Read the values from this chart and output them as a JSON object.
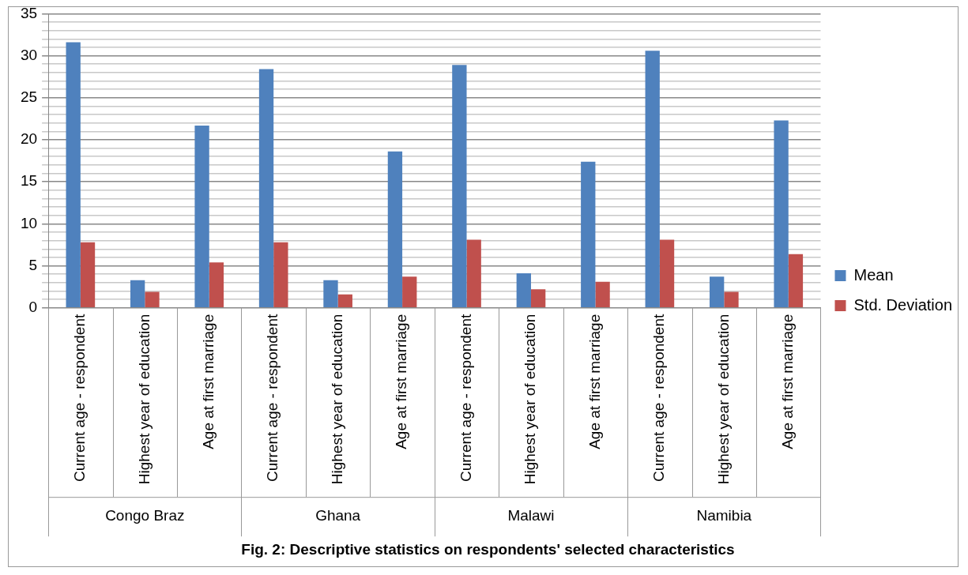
{
  "chart_data": {
    "type": "bar",
    "title": "Fig. 2: Descriptive statistics on respondents' selected characteristics",
    "categories": [
      "Current age - respondent",
      "Highest year of education",
      "Age at first marriage",
      "Current age - respondent",
      "Highest year of education",
      "Age at first marriage",
      "Current age - respondent",
      "Highest year of education",
      "Age at first marriage",
      "Current age - respondent",
      "Highest year of education",
      "Age at first marriage"
    ],
    "annotations": [
      "Congo Braz",
      "Ghana",
      "Malawi",
      "Namibia"
    ],
    "series": [
      {
        "name": "Mean",
        "color": "#4f81bd",
        "values": [
          31.6,
          3.3,
          21.7,
          28.4,
          3.3,
          18.6,
          28.9,
          4.1,
          17.4,
          30.6,
          3.7,
          22.3
        ]
      },
      {
        "name": "Std. Deviation",
        "color": "#c0504d",
        "values": [
          7.8,
          1.9,
          5.4,
          7.8,
          1.6,
          3.7,
          8.1,
          2.2,
          3.1,
          8.1,
          1.9,
          6.4
        ]
      }
    ],
    "ylim": [
      0,
      35
    ],
    "yticks": [
      0,
      {
        "value": 1,
        "label": null
      },
      {
        "value": 2,
        "label": null
      },
      {
        "value": 3,
        "label": null
      },
      {
        "value": 4,
        "label": null
      },
      5,
      {
        "value": 6,
        "label": null
      },
      {
        "value": 7,
        "label": null
      },
      {
        "value": 8,
        "label": null
      },
      {
        "value": 9,
        "label": null
      },
      10,
      {
        "value": 11,
        "label": null
      },
      {
        "value": 12,
        "label": null
      },
      {
        "value": 13,
        "label": null
      },
      {
        "value": 14,
        "label": null
      },
      15,
      {
        "value": 16,
        "label": null
      },
      {
        "value": 17,
        "label": null
      },
      {
        "value": 18,
        "label": null
      },
      {
        "value": 19,
        "label": null
      },
      20,
      {
        "value": 21,
        "label": null
      },
      {
        "value": 22,
        "label": null
      },
      {
        "value": 23,
        "label": null
      },
      {
        "value": 24,
        "label": null
      },
      25,
      {
        "value": 26,
        "label": null
      },
      {
        "value": 27,
        "label": null
      },
      {
        "value": 28,
        "label": null
      },
      {
        "value": 29,
        "label": null
      },
      30,
      {
        "value": 31,
        "label": null
      },
      {
        "value": 32,
        "label": null
      },
      {
        "value": 33,
        "label": null
      },
      {
        "value": 34,
        "label": null
      },
      35
    ],
    "grid": "y",
    "legend": "right"
  }
}
